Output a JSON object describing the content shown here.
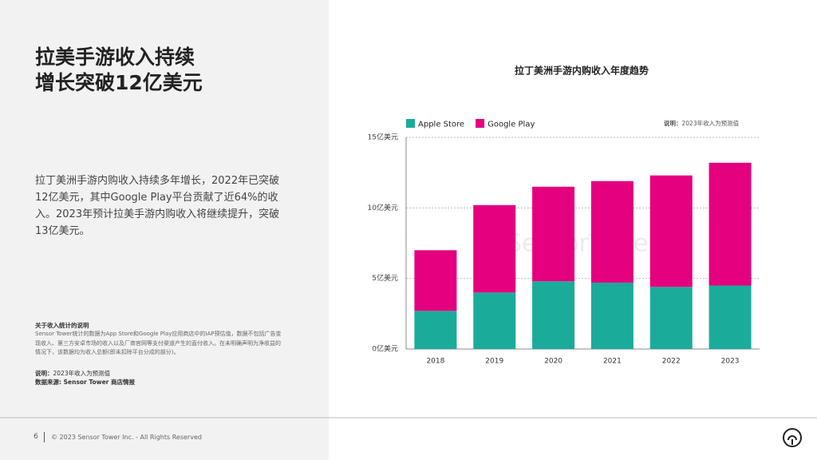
{
  "slide": {
    "title_lines": [
      "拉美手游收入持续",
      "增长突破12亿美元"
    ],
    "paragraph": "拉丁美洲手游内购收入持续多年增长，2022年已突破12亿美元，其中Google Play平台贡献了近64%的收入。2023年预计拉美手游内购收入将继续提升，突破13亿美元。",
    "notes_heading": "关于收入统计的说明",
    "notes_body": "Sensor Tower统计的数据为App Store和Google Play应用商店中的IAP预估值，数据不包括广告变现收入、第三方安卓市场的收入以及厂商官网等支付渠道产生的直付收入。在未明确声明为净收益的情况下，该数据均为收入总额(即未扣除平台分成的部分)。",
    "note_label": "说明：",
    "note_text": "2023年收入为预测值",
    "source": "数据来源: Sensor Tower 商店情报",
    "page_number": "6",
    "copyright": "© 2023 Sensor Tower Inc. - All Rights Reserved"
  },
  "chart_data": {
    "type": "stacked_bar",
    "title": "拉丁美洲手游内购收入年度趋势",
    "note_label": "说明：",
    "note_text": "2023年收入为预测值",
    "watermark": "SensorTower",
    "categories": [
      "2018",
      "2019",
      "2020",
      "2021",
      "2022",
      "2023"
    ],
    "series": [
      {
        "name": "Apple Store",
        "color": "#1aab9b",
        "values": [
          2.7,
          4.0,
          4.8,
          4.7,
          4.4,
          4.5
        ]
      },
      {
        "name": "Google Play",
        "color": "#e4007f",
        "values": [
          4.3,
          6.2,
          6.7,
          7.2,
          7.9,
          8.7
        ]
      }
    ],
    "ylim": [
      0,
      15
    ],
    "yticks": [
      {
        "value": 0,
        "label": "0亿美元"
      },
      {
        "value": 5,
        "label": "5亿美元"
      },
      {
        "value": 10,
        "label": "10亿美元"
      },
      {
        "value": 15,
        "label": "15亿美元"
      }
    ],
    "grid": true
  }
}
